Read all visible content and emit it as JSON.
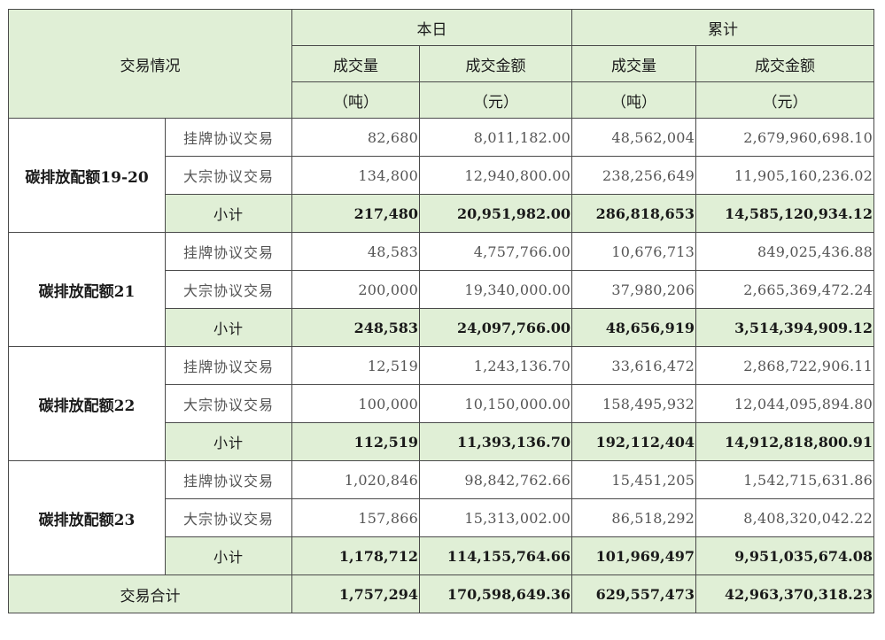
{
  "header": {
    "trade_info": "交易情况",
    "today": "本日",
    "cumulative": "累计",
    "volume": "成交量",
    "amount": "成交金额",
    "unit_ton": "（吨）",
    "unit_yuan": "（元）"
  },
  "groups": [
    {
      "name": "碳排放配额19-20",
      "rows": [
        {
          "type": "挂牌协议交易",
          "today_volume": "82,680",
          "today_amount": "8,011,182.00",
          "cum_volume": "48,562,004",
          "cum_amount": "2,679,960,698.10"
        },
        {
          "type": "大宗协议交易",
          "today_volume": "134,800",
          "today_amount": "12,940,800.00",
          "cum_volume": "238,256,649",
          "cum_amount": "11,905,160,236.02"
        },
        {
          "type": "小计",
          "today_volume": "217,480",
          "today_amount": "20,951,982.00",
          "cum_volume": "286,818,653",
          "cum_amount": "14,585,120,934.12"
        }
      ]
    },
    {
      "name": "碳排放配额21",
      "rows": [
        {
          "type": "挂牌协议交易",
          "today_volume": "48,583",
          "today_amount": "4,757,766.00",
          "cum_volume": "10,676,713",
          "cum_amount": "849,025,436.88"
        },
        {
          "type": "大宗协议交易",
          "today_volume": "200,000",
          "today_amount": "19,340,000.00",
          "cum_volume": "37,980,206",
          "cum_amount": "2,665,369,472.24"
        },
        {
          "type": "小计",
          "today_volume": "248,583",
          "today_amount": "24,097,766.00",
          "cum_volume": "48,656,919",
          "cum_amount": "3,514,394,909.12"
        }
      ]
    },
    {
      "name": "碳排放配额22",
      "rows": [
        {
          "type": "挂牌协议交易",
          "today_volume": "12,519",
          "today_amount": "1,243,136.70",
          "cum_volume": "33,616,472",
          "cum_amount": "2,868,722,906.11"
        },
        {
          "type": "大宗协议交易",
          "today_volume": "100,000",
          "today_amount": "10,150,000.00",
          "cum_volume": "158,495,932",
          "cum_amount": "12,044,095,894.80"
        },
        {
          "type": "小计",
          "today_volume": "112,519",
          "today_amount": "11,393,136.70",
          "cum_volume": "192,112,404",
          "cum_amount": "14,912,818,800.91"
        }
      ]
    },
    {
      "name": "碳排放配额23",
      "rows": [
        {
          "type": "挂牌协议交易",
          "today_volume": "1,020,846",
          "today_amount": "98,842,762.66",
          "cum_volume": "15,451,205",
          "cum_amount": "1,542,715,631.86"
        },
        {
          "type": "大宗协议交易",
          "today_volume": "157,866",
          "today_amount": "15,313,002.00",
          "cum_volume": "86,518,292",
          "cum_amount": "8,408,320,042.22"
        },
        {
          "type": "小计",
          "today_volume": "1,178,712",
          "today_amount": "114,155,764.66",
          "cum_volume": "101,969,497",
          "cum_amount": "9,951,035,674.08"
        }
      ]
    }
  ],
  "total": {
    "label": "交易合计",
    "today_volume": "1,757,294",
    "today_amount": "170,598,649.36",
    "cum_volume": "629,557,473",
    "cum_amount": "42,963,370,318.23"
  }
}
